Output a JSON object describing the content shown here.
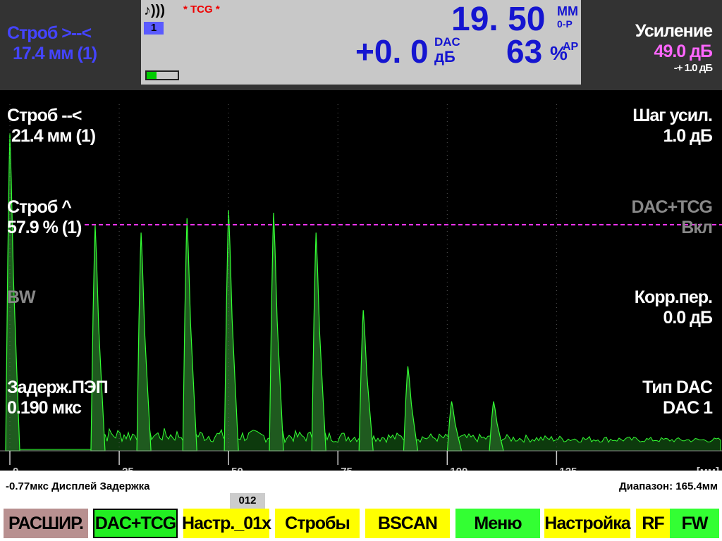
{
  "header": {
    "gate_a": {
      "label": "Строб >--<",
      "value": "17.4 мм (1)"
    },
    "sound_icon": "♪)))",
    "channel": "1",
    "mode": "* TCG *",
    "depth": "19. 50",
    "depth_unit": "ММ",
    "depth_mode": "0-Р",
    "db_value": "+0. 0",
    "db_sup": "DAC",
    "db_unit": "дБ",
    "amplitude": "63",
    "amp_unit": "%",
    "amp_sup": "AP",
    "gain": {
      "label": "Усиление",
      "value": "49.0 дБ",
      "step": "-+ 1.0 дБ"
    }
  },
  "left_params": [
    {
      "label": "Строб --<",
      "value": "21.4 мм (1)"
    },
    {
      "label": "Строб ^",
      "value": "57.9 % (1)"
    },
    {
      "label": "BW"
    },
    {
      "label": "Задерж.ПЭП",
      "value": "0.190 мкс"
    }
  ],
  "right_params": [
    {
      "label": "Шаг усил.",
      "value": "1.0 дБ"
    },
    {
      "label": "DAC+TCG",
      "value": "Вкл"
    },
    {
      "label": "Корр.пер.",
      "value": "0.0 дБ"
    },
    {
      "label": "Тип DAC",
      "value": "DAC 1"
    }
  ],
  "scan": {
    "x_unit": "[мм]",
    "xlim": [
      0,
      162.5
    ],
    "xticks": [
      0,
      25,
      50,
      75,
      100,
      125
    ],
    "ylim": [
      0,
      100
    ],
    "color": "#33ff33",
    "peaks": [
      {
        "position": 0,
        "amplitude": 88
      },
      {
        "position": 19.5,
        "amplitude": 62.5
      },
      {
        "position": 30,
        "amplitude": 60.5
      },
      {
        "position": 40.5,
        "amplitude": 64.5
      },
      {
        "position": 50,
        "amplitude": 66.8
      },
      {
        "position": 60.3,
        "amplitude": 66
      },
      {
        "position": 70,
        "amplitude": 60.5
      },
      {
        "position": 80.8,
        "amplitude": 39
      },
      {
        "position": 91,
        "amplitude": 23.4
      },
      {
        "position": 101,
        "amplitude": 13.7
      },
      {
        "position": 110.6,
        "amplitude": 13.7
      }
    ]
  },
  "footer": {
    "delay": "-0.77мкс  Дисплей Задержка",
    "range": "Диапазон: 165.4мм",
    "page": "012"
  },
  "buttons": [
    "РАСШИР.",
    "DAC+TCG",
    "Настр._01х",
    "Стробы",
    "BSCAN",
    "Меню",
    "Настройка",
    "RF",
    "FW"
  ]
}
